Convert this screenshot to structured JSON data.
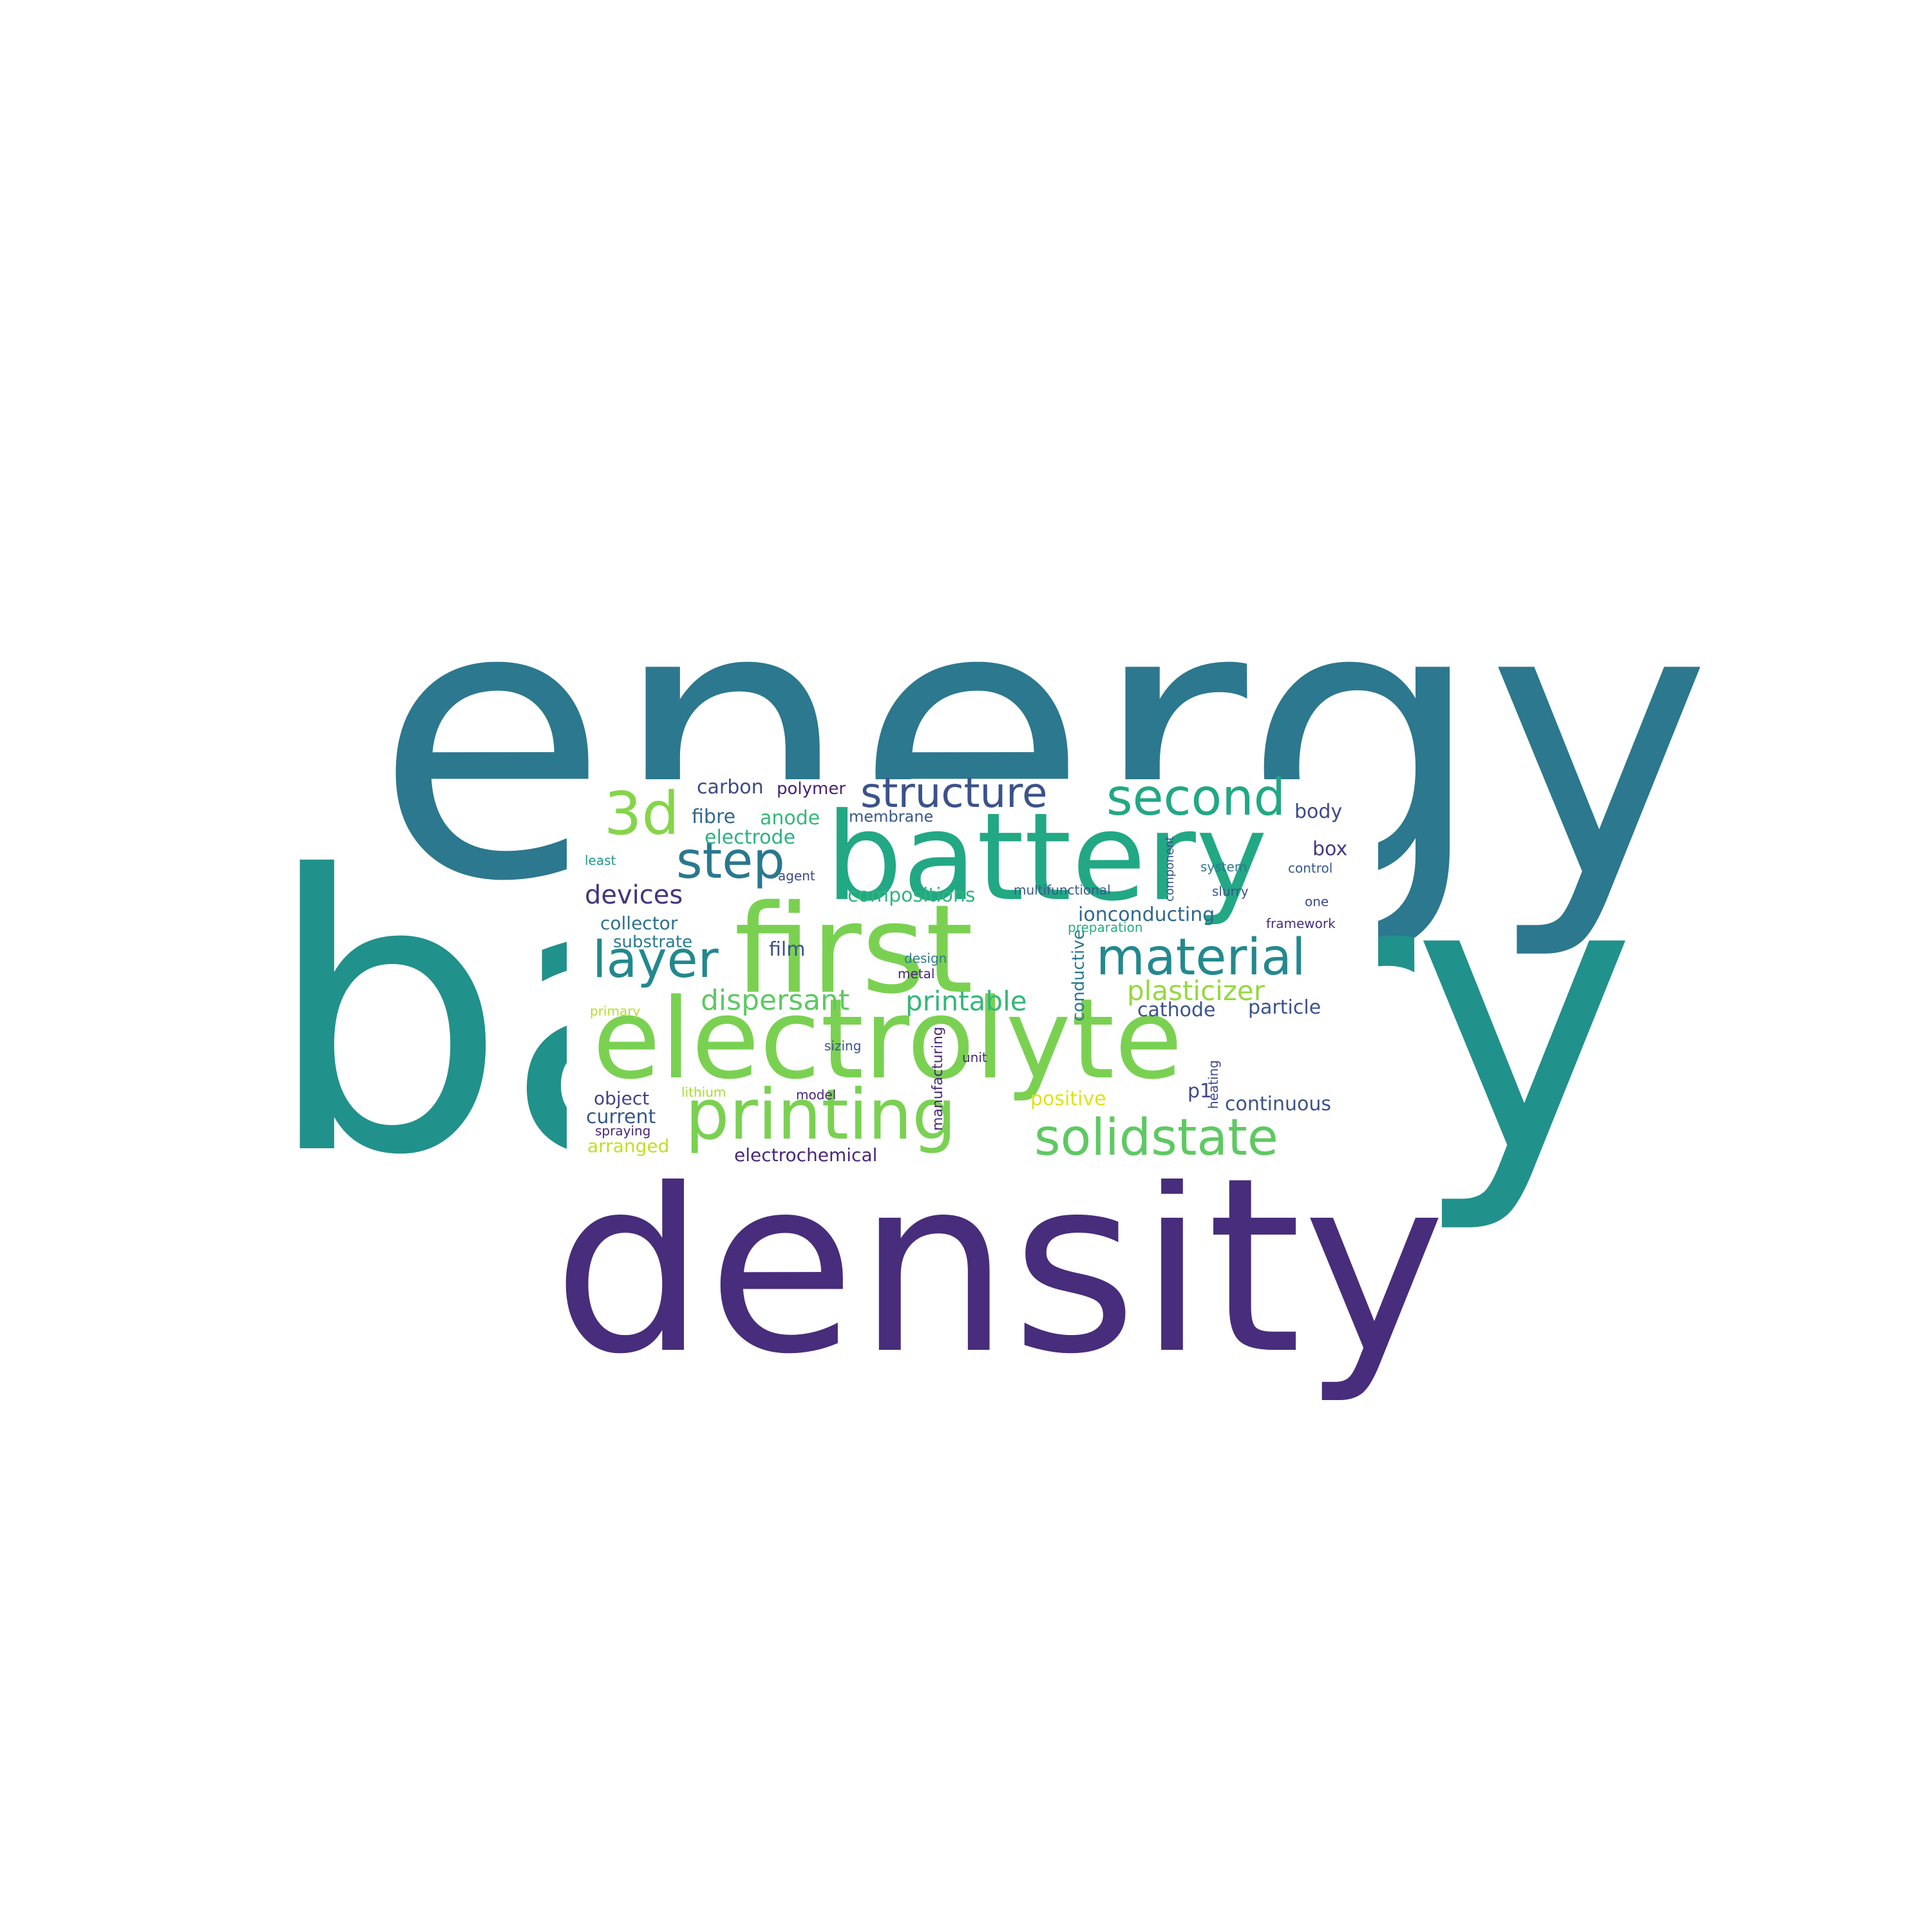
{
  "words": [
    {
      "id": "energy",
      "text": "energy",
      "color": "#2c788e"
    },
    {
      "id": "battery-big",
      "text": "battery",
      "color": "#21918c"
    },
    {
      "id": "density",
      "text": "density",
      "color": "#472d7b"
    },
    {
      "id": "battery-small",
      "text": "battery",
      "color": "#22a884"
    },
    {
      "id": "first",
      "text": "first",
      "color": "#7ad151"
    },
    {
      "id": "electrolyte",
      "text": "electrolyte",
      "color": "#7ad151"
    },
    {
      "id": "printing",
      "text": "printing",
      "color": "#7ad151"
    },
    {
      "id": "solidstate",
      "text": "solidstate",
      "color": "#5ec962"
    },
    {
      "id": "structure",
      "text": "structure",
      "color": "#3b528b"
    },
    {
      "id": "second",
      "text": "second",
      "color": "#22a884"
    },
    {
      "id": "3d",
      "text": "3d",
      "color": "#86d549"
    },
    {
      "id": "step",
      "text": "step",
      "color": "#2a788e"
    },
    {
      "id": "layer",
      "text": "layer",
      "color": "#23888e"
    },
    {
      "id": "material",
      "text": "material",
      "color": "#23898e"
    },
    {
      "id": "dispersant",
      "text": "dispersant",
      "color": "#5ec962"
    },
    {
      "id": "printable",
      "text": "printable",
      "color": "#35b779"
    },
    {
      "id": "plasticizer",
      "text": "plasticizer",
      "color": "#95d840"
    },
    {
      "id": "devices",
      "text": "devices",
      "color": "#46337e"
    },
    {
      "id": "carbon",
      "text": "carbon",
      "color": "#3e4989"
    },
    {
      "id": "polymer",
      "text": "polymer",
      "color": "#482173"
    },
    {
      "id": "fibre",
      "text": "fibre",
      "color": "#31688e"
    },
    {
      "id": "anode",
      "text": "anode",
      "color": "#35b779"
    },
    {
      "id": "membrane",
      "text": "membrane",
      "color": "#38588c"
    },
    {
      "id": "electrode",
      "text": "electrode",
      "color": "#2db27d"
    },
    {
      "id": "body",
      "text": "body",
      "color": "#3e4989"
    },
    {
      "id": "box",
      "text": "box",
      "color": "#443983"
    },
    {
      "id": "collector",
      "text": "collector",
      "color": "#2c728e"
    },
    {
      "id": "substrate",
      "text": "substrate",
      "color": "#297b8e"
    },
    {
      "id": "film",
      "text": "film",
      "color": "#3b528b"
    },
    {
      "id": "compositions",
      "text": "compositions",
      "color": "#2fb47c"
    },
    {
      "id": "ionconducting",
      "text": "ionconducting",
      "color": "#31688e"
    },
    {
      "id": "cathode",
      "text": "cathode",
      "color": "#3b528b"
    },
    {
      "id": "particle",
      "text": "particle",
      "color": "#3b528b"
    },
    {
      "id": "continuous",
      "text": "continuous",
      "color": "#3b528b"
    },
    {
      "id": "object",
      "text": "object",
      "color": "#414487"
    },
    {
      "id": "current",
      "text": "current",
      "color": "#38588c"
    },
    {
      "id": "arranged",
      "text": "arranged",
      "color": "#c2df23"
    },
    {
      "id": "electrochemical",
      "text": "electrochemical",
      "color": "#482878"
    },
    {
      "id": "positive",
      "text": "positive",
      "color": "#dde318"
    },
    {
      "id": "p1",
      "text": "p1",
      "color": "#3e4989"
    },
    {
      "id": "conductive",
      "text": "conductive",
      "color": "#2a788e"
    },
    {
      "id": "manufacturing",
      "text": "manufacturing",
      "color": "#482878"
    },
    {
      "id": "least",
      "text": "least",
      "color": "#1f988b"
    },
    {
      "id": "agent",
      "text": "agent",
      "color": "#3e4989"
    },
    {
      "id": "multifunctional",
      "text": "multifunctional",
      "color": "#38588c"
    },
    {
      "id": "component",
      "text": "component",
      "color": "#3b528b"
    },
    {
      "id": "system",
      "text": "system",
      "color": "#2a788e"
    },
    {
      "id": "slurry",
      "text": "slurry",
      "color": "#3b528b"
    },
    {
      "id": "control",
      "text": "control",
      "color": "#38588c"
    },
    {
      "id": "one",
      "text": "one",
      "color": "#3e4989"
    },
    {
      "id": "framework",
      "text": "framework",
      "color": "#472d7b"
    },
    {
      "id": "preparation",
      "text": "preparation",
      "color": "#25ac82"
    },
    {
      "id": "design",
      "text": "design",
      "color": "#2a788e"
    },
    {
      "id": "metal",
      "text": "metal",
      "color": "#482475"
    },
    {
      "id": "primary",
      "text": "primary",
      "color": "#b5de2b"
    },
    {
      "id": "sizing",
      "text": "sizing",
      "color": "#3b528b"
    },
    {
      "id": "unit",
      "text": "unit",
      "color": "#482878"
    },
    {
      "id": "heating",
      "text": "heating",
      "color": "#3e4989"
    },
    {
      "id": "lithium",
      "text": "lithium",
      "color": "#a8db34"
    },
    {
      "id": "model",
      "text": "model",
      "color": "#482475"
    },
    {
      "id": "spraying",
      "text": "spraying",
      "color": "#482475"
    }
  ]
}
